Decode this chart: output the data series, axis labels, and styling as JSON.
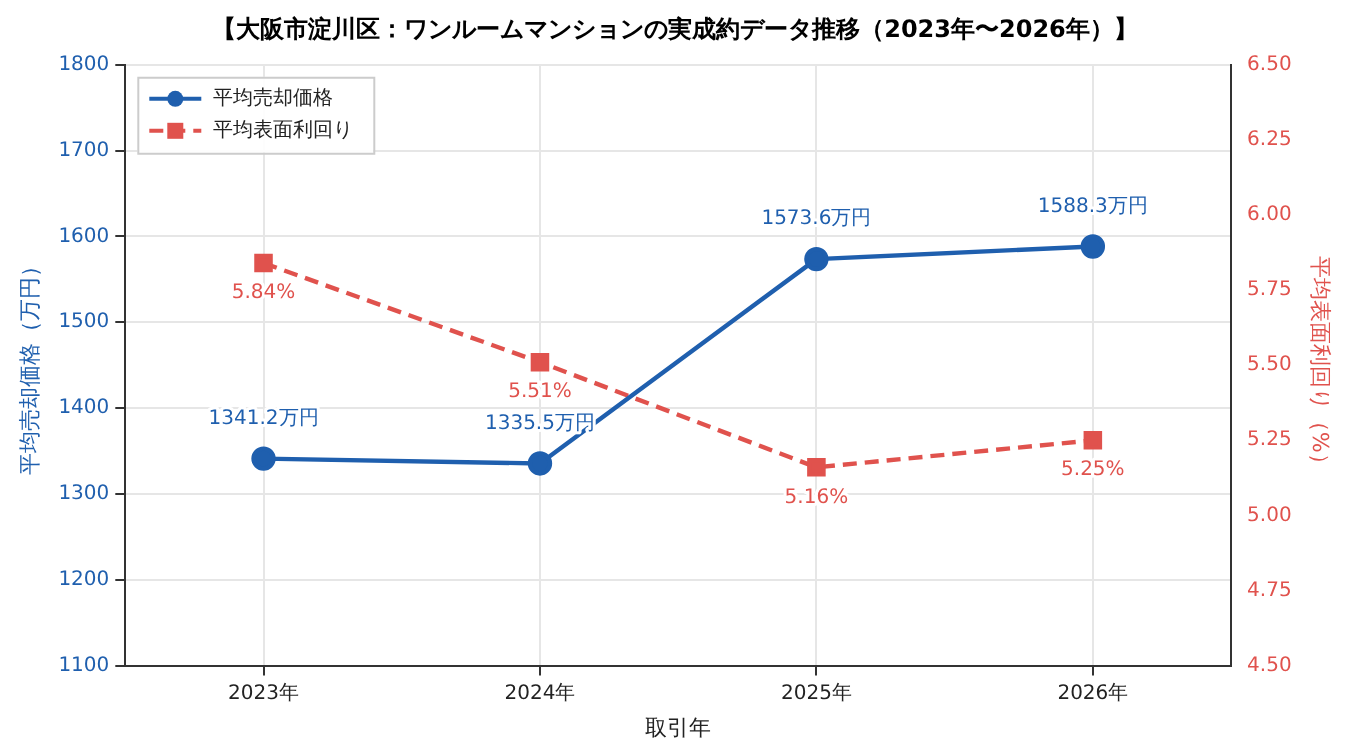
{
  "chart_data": {
    "type": "line",
    "title": "【大阪市淀川区：ワンルームマンションの実成約データ推移（2023年〜2026年）】",
    "xlabel": "取引年",
    "ylabel": "平均売却価格（万円）",
    "y2label": "平均表面利回り（%）",
    "categories": [
      "2023年",
      "2024年",
      "2025年",
      "2026年"
    ],
    "series": [
      {
        "name": "平均売却価格",
        "color": "#1f5fae",
        "values": [
          1341.2,
          1335.5,
          1573.6,
          1588.3
        ],
        "value_labels": [
          "1341.2万円",
          "1335.5万円",
          "1573.6万円",
          "1588.3万円"
        ],
        "marker": "circle",
        "line_style": "solid"
      },
      {
        "name": "平均表面利回り",
        "color": "#e0524d",
        "values": [
          5.84,
          5.51,
          5.16,
          5.25
        ],
        "value_labels": [
          "5.84%",
          "5.51%",
          "5.16%",
          "5.25%"
        ],
        "marker": "square",
        "line_style": "dashed",
        "axis": "y2"
      }
    ],
    "ylim": [
      1100,
      1800
    ],
    "yticks": [
      1100,
      1200,
      1300,
      1400,
      1500,
      1600,
      1700,
      1800
    ],
    "y2lim": [
      4.5,
      6.5
    ],
    "y2ticks": [
      {
        "value": 4.5,
        "label": "4.50"
      },
      {
        "value": 4.75,
        "label": "4.75"
      },
      {
        "value": 5,
        "label": "5.00"
      },
      {
        "value": 5.25,
        "label": "5.25"
      },
      {
        "value": 5.5,
        "label": "5.50"
      },
      {
        "value": 5.75,
        "label": "5.75"
      },
      {
        "value": 6,
        "label": "6.00"
      },
      {
        "value": 6.25,
        "label": "6.25"
      },
      {
        "value": 6.5,
        "label": "6.50"
      }
    ],
    "grid": true,
    "legend": "top left"
  }
}
